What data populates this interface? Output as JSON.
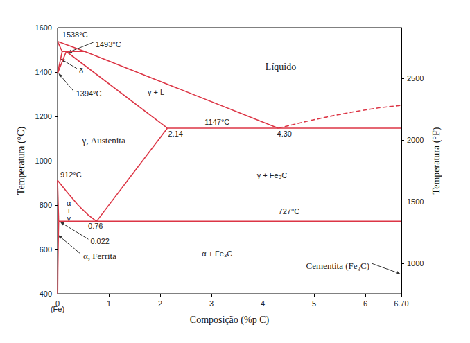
{
  "chart_data": {
    "type": "line",
    "x_label": "Composição (%p C)",
    "y_label": "Temperatura (°C)",
    "y2_label": "Temperatura (°F)",
    "color": "#dc3545",
    "grid": false,
    "xlim": [
      0,
      6.7
    ],
    "xticks": [
      0,
      1,
      2,
      3,
      4,
      5,
      6,
      {
        "value": 6.7,
        "label": "6.70"
      }
    ],
    "ylim": [
      400,
      1600
    ],
    "yticks": [
      400,
      600,
      800,
      1000,
      1200,
      1400,
      1600
    ],
    "y2lim": [
      752,
      2912
    ],
    "y2ticks": [
      1000,
      1500,
      2000,
      2500
    ],
    "series": [
      {
        "values": [
          [
            0,
            1538
          ],
          [
            0.53,
            1493
          ],
          [
            4.3,
            1147
          ]
        ],
        "line_style": "solid"
      },
      {
        "values": [
          [
            4.3,
            1147
          ],
          [
            4.8,
            1175
          ],
          [
            5.3,
            1200
          ],
          [
            5.8,
            1222
          ],
          [
            6.3,
            1240
          ],
          [
            6.7,
            1250
          ]
        ],
        "line_style": "dashed"
      },
      {
        "values": [
          [
            0,
            1538
          ],
          [
            0.09,
            1493
          ]
        ],
        "line_style": "solid"
      },
      {
        "values": [
          [
            0,
            1394
          ],
          [
            0.09,
            1493
          ]
        ],
        "line_style": "solid"
      },
      {
        "values": [
          [
            0.09,
            1493
          ],
          [
            0.53,
            1493
          ]
        ],
        "line_style": "solid"
      },
      {
        "values": [
          [
            0,
            1394
          ],
          [
            0.17,
            1493
          ]
        ],
        "line_style": "solid"
      },
      {
        "values": [
          [
            0.17,
            1493
          ],
          [
            2.14,
            1147
          ]
        ],
        "line_style": "solid"
      },
      {
        "values": [
          [
            2.14,
            1147
          ],
          [
            6.7,
            1147
          ]
        ],
        "line_style": "solid"
      },
      {
        "values": [
          [
            2.14,
            1147
          ],
          [
            0.76,
            727
          ]
        ],
        "line_style": "solid"
      },
      {
        "values": [
          [
            0,
            912
          ],
          [
            0.2,
            855
          ],
          [
            0.4,
            800
          ],
          [
            0.6,
            755
          ],
          [
            0.76,
            727
          ]
        ],
        "line_style": "solid"
      },
      {
        "values": [
          [
            0.022,
            727
          ],
          [
            6.7,
            727
          ]
        ],
        "line_style": "solid"
      },
      {
        "values": [
          [
            0,
            912
          ],
          [
            0.022,
            727
          ]
        ],
        "line_style": "solid"
      },
      {
        "values": [
          [
            0.022,
            727
          ],
          [
            0.012,
            600
          ],
          [
            0.006,
            500
          ],
          [
            0.003,
            400
          ]
        ],
        "line_style": "solid"
      }
    ],
    "annotations": [
      {
        "text": "1538°C",
        "xytext": [
          0.34,
          1569
        ]
      },
      {
        "text": "1493°C",
        "xytext": [
          0.74,
          1525
        ],
        "xy": [
          0.2,
          1488
        ]
      },
      {
        "text": "δ",
        "xytext": [
          0.42,
          1406
        ],
        "xy": [
          0.06,
          1460
        ]
      },
      {
        "text": "1394°C",
        "xytext": [
          0.36,
          1303
        ],
        "xy": [
          0.02,
          1394
        ]
      },
      {
        "text": "γ + L",
        "xytext": [
          1.92,
          1309
        ]
      },
      {
        "text": "Líquido",
        "xytext": [
          4.35,
          1425
        ]
      },
      {
        "text": "1147°C",
        "xytext": [
          3.11,
          1175
        ]
      },
      {
        "text": "2.14",
        "xytext": [
          2.3,
          1122
        ]
      },
      {
        "text": "4.30",
        "xytext": [
          4.42,
          1122
        ]
      },
      {
        "text": "γ, Austenita",
        "xytext": [
          0.9,
          1091
        ]
      },
      {
        "text": "912°C",
        "xytext": [
          0.26,
          938
        ]
      },
      {
        "text": "γ + Fe₃C",
        "xytext": [
          4.18,
          934
        ]
      },
      {
        "text": "727°C",
        "xytext": [
          4.51,
          772
        ]
      },
      {
        "text": "α\n+\nγ",
        "xytext": [
          0.22,
          775
        ]
      },
      {
        "text": "0.76",
        "xytext": [
          0.74,
          706
        ]
      },
      {
        "text": "0.022",
        "xytext": [
          0.64,
          637
        ],
        "xy": [
          0.05,
          724
        ]
      },
      {
        "text": "α, Ferrita",
        "xytext": [
          0.5,
          569
        ],
        "xy": [
          0.01,
          665
        ]
      },
      {
        "text": "α + Fe₃C",
        "xytext": [
          3.11,
          581
        ]
      },
      {
        "text": "Cementita (Fe₃C)",
        "xytext": [
          6.08,
          528
        ],
        "xy": [
          6.68,
          490
        ]
      },
      {
        "text": "(Fe)",
        "xytext": [
          0,
          330
        ]
      }
    ]
  }
}
